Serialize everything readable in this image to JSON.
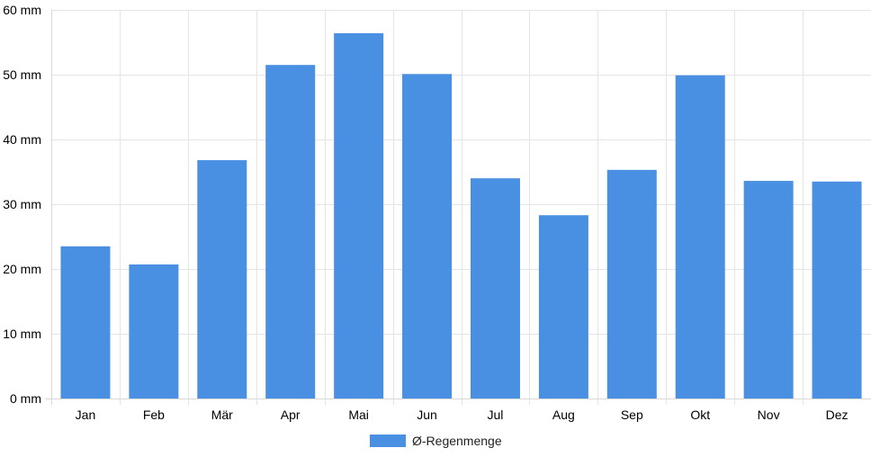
{
  "chart_data": {
    "type": "bar",
    "title": "",
    "xlabel": "",
    "ylabel": "",
    "categories": [
      "Jan",
      "Feb",
      "Mär",
      "Apr",
      "Mai",
      "Jun",
      "Jul",
      "Aug",
      "Sep",
      "Okt",
      "Nov",
      "Dez"
    ],
    "series": [
      {
        "name": "Ø-Regenmenge",
        "values": [
          23.5,
          20.7,
          36.8,
          51.5,
          56.4,
          50.1,
          34.0,
          28.3,
          35.3,
          49.9,
          33.6,
          33.5
        ],
        "color": "#4a90e2"
      }
    ],
    "ylim": [
      0,
      60
    ],
    "y_ticks": [
      {
        "value": 0,
        "label": "0 mm"
      },
      {
        "value": 10,
        "label": "10 mm"
      },
      {
        "value": 20,
        "label": "20 mm"
      },
      {
        "value": 30,
        "label": "30 mm"
      },
      {
        "value": 40,
        "label": "40 mm"
      },
      {
        "value": 50,
        "label": "50 mm"
      },
      {
        "value": 60,
        "label": "60 mm"
      }
    ],
    "grid": true,
    "grid_color": "#e5e5e5",
    "legend": {
      "position": "bottom-center"
    }
  }
}
